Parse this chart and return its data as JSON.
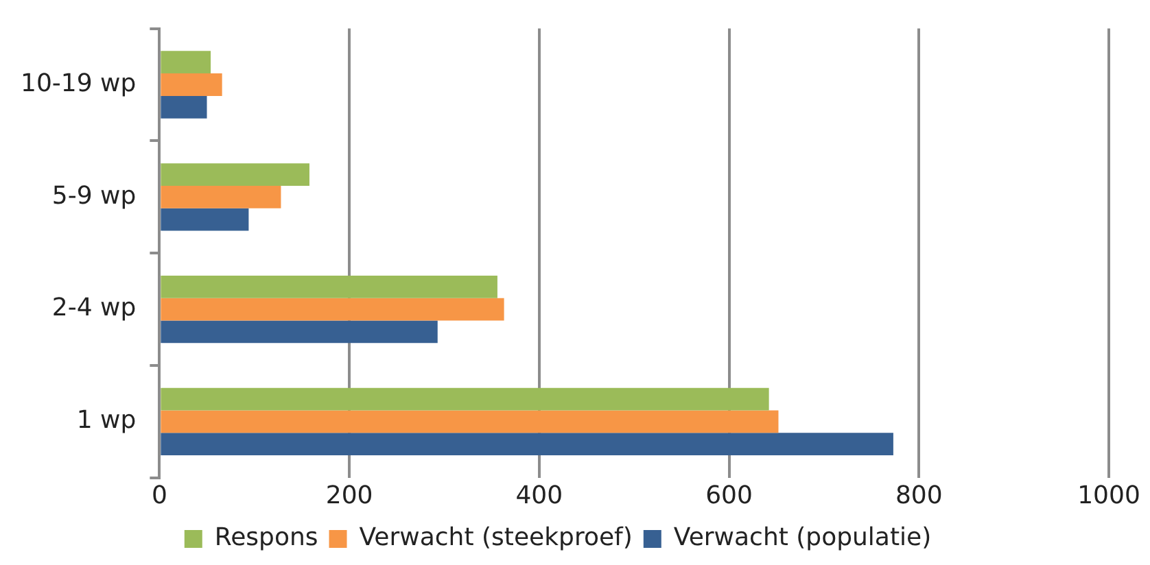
{
  "chart_data": {
    "type": "bar",
    "orientation": "horizontal",
    "categories": [
      "10-19 wp",
      "5-9 wp",
      "2-4 wp",
      "1 wp"
    ],
    "series": [
      {
        "name": "Respons",
        "color": "#9bbb59",
        "values": [
          54,
          158,
          356,
          642
        ]
      },
      {
        "name": "Verwacht (steekproef)",
        "color": "#f79646",
        "values": [
          66,
          128,
          363,
          652
        ]
      },
      {
        "name": "Verwacht (populatie)",
        "color": "#376092",
        "values": [
          50,
          94,
          293,
          773
        ]
      }
    ],
    "xlim": [
      0,
      1000
    ],
    "xticks": [
      0,
      200,
      400,
      600,
      800,
      1000
    ],
    "grid": "x",
    "legend": "bottom"
  }
}
